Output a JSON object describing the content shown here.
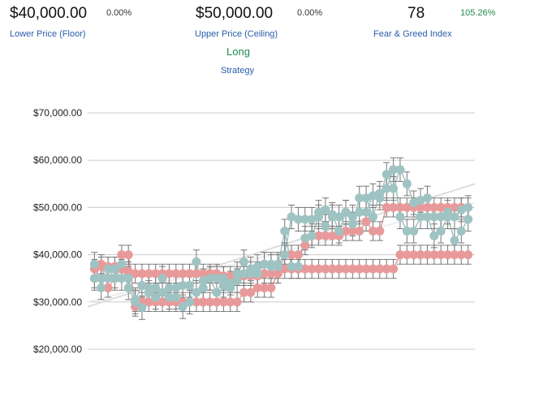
{
  "header": {
    "lower": {
      "value": "$40,000.00",
      "pct": "0.00%",
      "label": "Lower Price (Floor)"
    },
    "upper": {
      "value": "$50,000.00",
      "pct": "0.00%",
      "label": "Upper Price (Ceiling)"
    },
    "fear_greed": {
      "value": "78",
      "pct": "105.26%",
      "label": "Fear & Greed Index"
    },
    "strategy": {
      "value": "Long",
      "label": "Strategy"
    }
  },
  "colors": {
    "pink_series": "#e89a9a",
    "teal_series": "#9fc3c3",
    "error_bar": "#777777",
    "gridline": "#cccccc",
    "green_text": "#1f8a4c",
    "link_blue": "#2a5caa"
  },
  "chart_data": {
    "type": "scatter",
    "title": "",
    "xlabel": "",
    "ylabel": "",
    "ylim": [
      15000,
      72000
    ],
    "yticks": [
      20000,
      30000,
      40000,
      50000,
      60000,
      70000
    ],
    "ytick_labels": [
      "$20,000.00",
      "$30,000.00",
      "$40,000.00",
      "$50,000.00",
      "$60,000.00",
      "$70,000.00"
    ],
    "grid": true,
    "x": [
      1,
      2,
      3,
      4,
      5,
      6,
      7,
      8,
      9,
      10,
      11,
      12,
      13,
      14,
      15,
      16,
      17,
      18,
      19,
      20,
      21,
      22,
      23,
      24,
      25,
      26,
      27,
      28,
      29,
      30,
      31,
      32,
      33,
      34,
      35,
      36,
      37,
      38,
      39,
      40,
      41,
      42,
      43,
      44,
      45,
      46,
      47,
      48,
      49,
      50,
      51,
      52,
      53,
      54,
      55,
      56
    ],
    "xlim": [
      0,
      57
    ],
    "series": [
      {
        "color": "#e89a9a",
        "err": 2000,
        "values": [
          35000,
          38000,
          33000,
          35000,
          40000,
          40000,
          29000,
          30000,
          30000,
          30000,
          30000,
          30000,
          30000,
          30000,
          30000,
          30000,
          30000,
          30000,
          30000,
          30000,
          30000,
          30000,
          32000,
          32000,
          33000,
          33000,
          33000,
          36000,
          37000,
          37000,
          37000,
          37000,
          37000,
          37000,
          37000,
          37000,
          37000,
          37000,
          37000,
          37000,
          37000,
          37000,
          37000,
          37000,
          37000,
          40000,
          40000,
          40000,
          40000,
          40000,
          40000,
          40000,
          40000,
          40000,
          40000,
          40000
        ]
      },
      {
        "color": "#e89a9a",
        "err": 2000,
        "values": [
          37000,
          37500,
          37500,
          37500,
          37000,
          36500,
          36000,
          36000,
          36000,
          36000,
          36000,
          36000,
          36000,
          36000,
          36000,
          36000,
          36000,
          36000,
          36000,
          35500,
          35500,
          35500,
          35500,
          35500,
          35500,
          36000,
          36000,
          36000,
          40000,
          40000,
          40000,
          42000,
          44000,
          44000,
          44000,
          44000,
          44000,
          45000,
          45000,
          45000,
          47000,
          45000,
          45000,
          50000,
          50000,
          50000,
          50000,
          50000,
          50000,
          50000,
          50000,
          50000,
          50000,
          50000,
          50000,
          50000
        ]
      },
      {
        "color": "#9fc3c3",
        "err": 2500,
        "values": [
          38000,
          33000,
          37000,
          35000,
          38000,
          33000,
          30000,
          28800,
          32000,
          31000,
          32000,
          31000,
          31000,
          29000,
          30000,
          38500,
          33000,
          35000,
          32000,
          35000,
          33000,
          36000,
          38500,
          36000,
          36000,
          38000,
          38000,
          37500,
          45000,
          37500,
          37500,
          43500,
          44000,
          48000,
          46000,
          48000,
          48000,
          49000,
          46500,
          52000,
          52000,
          48000,
          53000,
          54000,
          58000,
          48000,
          45000,
          45000,
          48000,
          48000,
          44000,
          45000,
          48000,
          43000,
          45000,
          47500
        ]
      },
      {
        "color": "#9fc3c3",
        "err": 2500,
        "values": [
          35000,
          35000,
          35000,
          37000,
          35000,
          35000,
          30500,
          33500,
          33000,
          33000,
          35000,
          33000,
          33000,
          33500,
          33500,
          32000,
          34500,
          35000,
          35000,
          33500,
          34000,
          34500,
          36000,
          37000,
          37500,
          38000,
          37500,
          38000,
          40000,
          48000,
          47500,
          47500,
          47500,
          49000,
          49500,
          48500,
          45000,
          49000,
          48000,
          49000,
          49000,
          52500,
          52000,
          57000,
          54000,
          58000,
          55000,
          51000,
          51500,
          52000,
          48000,
          48000,
          49000,
          48000,
          49500,
          50000
        ]
      }
    ]
  }
}
